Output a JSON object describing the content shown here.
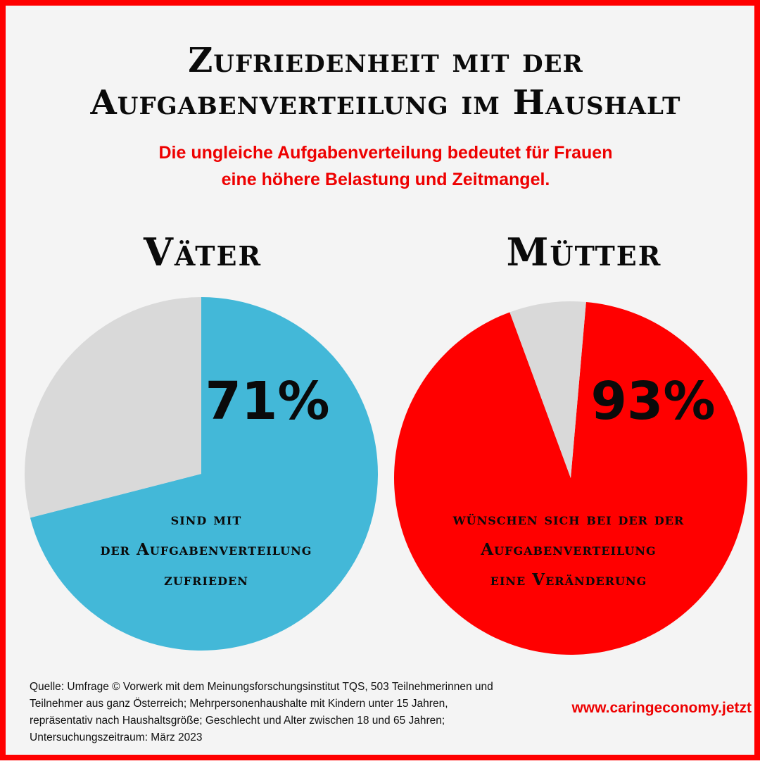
{
  "title": {
    "line1": "Zufriedenheit mit der",
    "line2": "Aufgabenverteilung im Haushalt"
  },
  "subtitle": {
    "line1": "Die ungleiche Aufgabenverteilung bedeutet für Frauen",
    "line2": "eine höhere Belastung und Zeitmangel."
  },
  "colors": {
    "frame": "#ff0000",
    "background": "#f4f4f4",
    "fathers": "#43b8d8",
    "mothers": "#ff0000",
    "remainder": "#d9d9d9",
    "subtitle_text": "#ee0000"
  },
  "chart_data": [
    {
      "type": "pie",
      "title": "Väter",
      "value_label": "71%",
      "slices": [
        {
          "value": 71,
          "color": "#43b8d8"
        },
        {
          "value": 29,
          "color": "#d9d9d9"
        }
      ],
      "annotation": [
        "sind mit",
        "der Aufgabenverteilung",
        "zufrieden"
      ]
    },
    {
      "type": "pie",
      "title": "Mütter",
      "value_label": "93%",
      "slices": [
        {
          "value": 93,
          "color": "#ff0000"
        },
        {
          "value": 7,
          "color": "#d9d9d9"
        }
      ],
      "annotation": [
        "wünschen sich bei der der",
        "Aufgabenverteilung",
        "eine Veränderung"
      ]
    }
  ],
  "source": "Quelle: Umfrage © Vorwerk mit dem Meinungsforschungsinstitut TQS,  503 Teilnehmerinnen und Teilnehmer aus ganz Österreich; Mehrpersonenhaushalte mit Kindern unter 15 Jahren, repräsentativ nach Haushaltsgröße; Geschlecht und Alter zwischen 18 und 65 Jahren; Untersuchungszeitraum: März 2023",
  "website": "www.caringeconomy.jetzt"
}
